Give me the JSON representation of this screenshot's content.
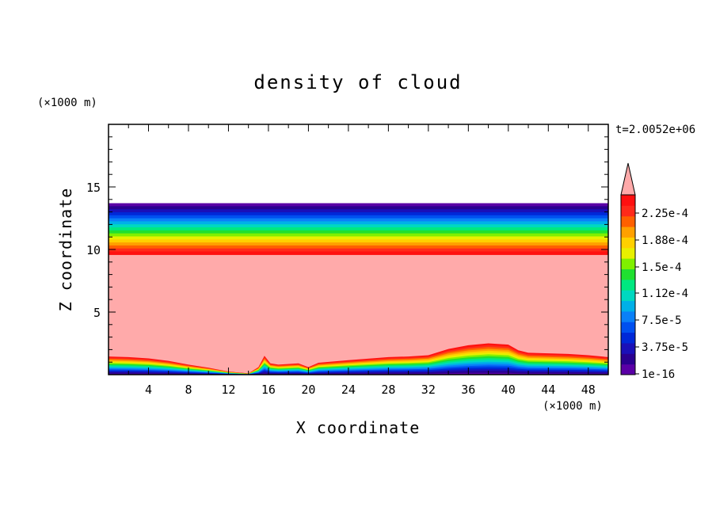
{
  "chart_data": {
    "type": "heatmap",
    "title": "density of cloud",
    "xlabel": "X coordinate",
    "ylabel": "Z coordinate",
    "x_unit": "(×1000 m)",
    "y_unit": "(×1000 m)",
    "time_label": "t=2.0052e+06",
    "xlim": [
      0,
      50
    ],
    "ylim": [
      0,
      20
    ],
    "x_ticks": [
      4,
      8,
      12,
      16,
      20,
      24,
      28,
      32,
      36,
      40,
      44,
      48
    ],
    "y_ticks": [
      5,
      10,
      15
    ],
    "colorbar": {
      "labels": [
        "2.25e-4",
        "1.88e-4",
        "1.5e-4",
        "1.12e-4",
        "7.5e-5",
        "3.75e-5",
        "1e-16"
      ],
      "label_values": [
        0.000225,
        0.000188,
        0.00015,
        0.000112,
        7.5e-05,
        3.75e-05,
        1e-16
      ],
      "levels_bottom_to_top": [
        "#5a00a6",
        "#2a0090",
        "#1a10b8",
        "#0028d8",
        "#0050f0",
        "#0a80f8",
        "#00b0e8",
        "#00d8c0",
        "#00e880",
        "#20e030",
        "#80f000",
        "#e8f000",
        "#ffd000",
        "#ffa000",
        "#ff6000",
        "#ff2a1a",
        "#ff1010"
      ],
      "overflow_color": "#ffaaaa"
    },
    "field": {
      "main_value_color": "#ffaaaa",
      "upper_layer_z": [
        9.6,
        13.7
      ],
      "lower_boundary_x": [
        0,
        2,
        4,
        6,
        8,
        10,
        12,
        14,
        15,
        15.6,
        16.2,
        17,
        19,
        20,
        21,
        24,
        28,
        30,
        32,
        34,
        36,
        38,
        40,
        41,
        42,
        44,
        46,
        48,
        50
      ],
      "lower_boundary_z": [
        1.45,
        1.4,
        1.3,
        1.1,
        0.8,
        0.55,
        0.25,
        0.1,
        0.6,
        1.5,
        0.9,
        0.8,
        0.9,
        0.6,
        0.95,
        1.15,
        1.4,
        1.45,
        1.55,
        2.05,
        2.35,
        2.5,
        2.4,
        1.95,
        1.75,
        1.7,
        1.65,
        1.55,
        1.4
      ]
    }
  }
}
